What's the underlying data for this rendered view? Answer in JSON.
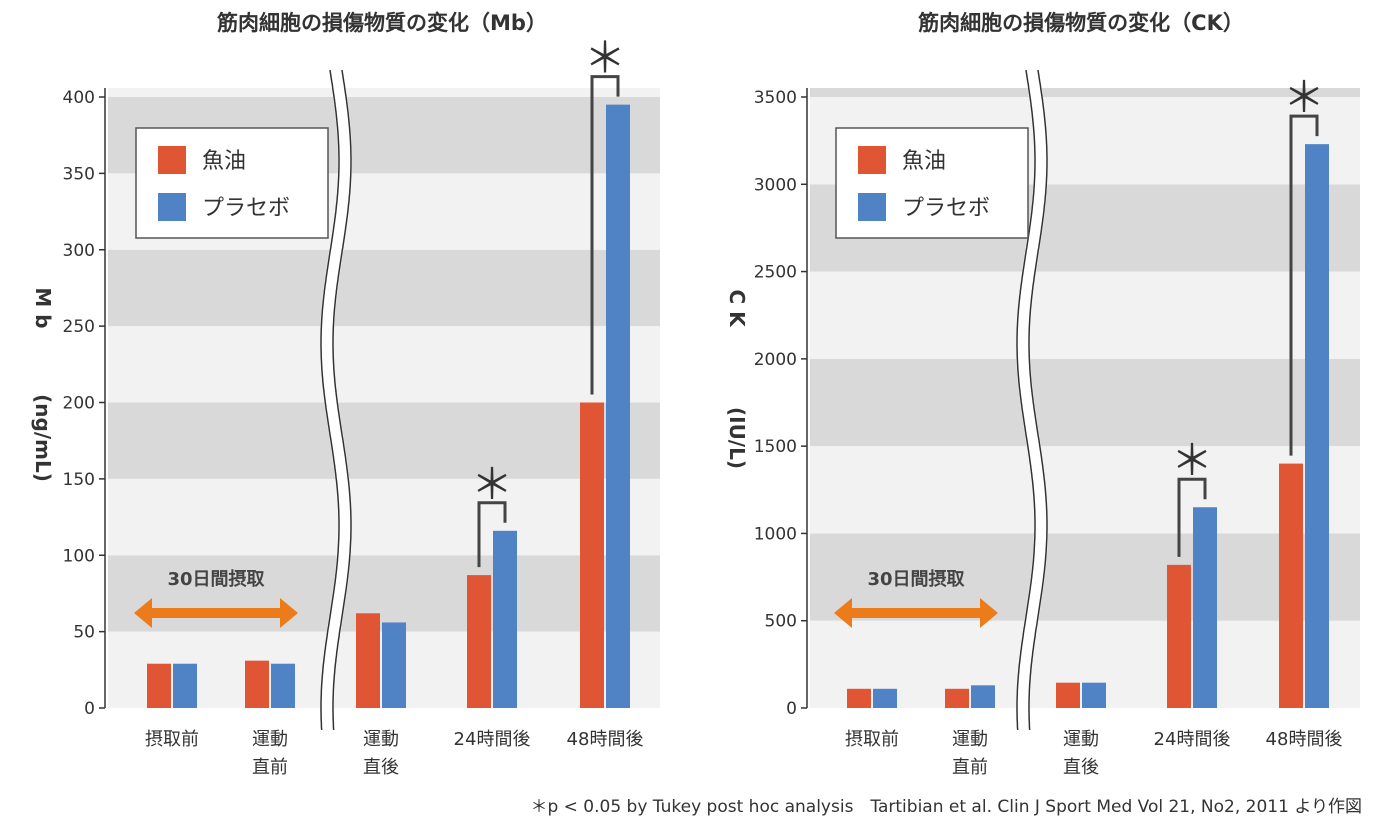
{
  "colors": {
    "fish_oil": "#e05533",
    "placebo": "#5083c6",
    "band_dark": "#d9d9d9",
    "band_light": "#f2f2f2",
    "arrow": "#ec7b1a",
    "bracket": "#444444"
  },
  "footnote": "＊p < 0.05  by Tukey post hoc analysis　Tartibian et al. Clin J Sport Med Vol 21, No2, 2011 より作図",
  "chart_data": [
    {
      "type": "bar",
      "title": "筋肉細胞の損傷物質の変化（Mb）",
      "ylabel_line1": "M b",
      "ylabel_line2": "(ng/mL)",
      "ylim": [
        0,
        400
      ],
      "yticks": [
        "0",
        "50",
        "100",
        "150",
        "200",
        "250",
        "300",
        "350",
        "400"
      ],
      "categories": [
        {
          "line1": "摂取前",
          "line2": ""
        },
        {
          "line1": "運動",
          "line2": "直前"
        },
        {
          "line1": "運動",
          "line2": "直後"
        },
        {
          "line1": "24時間後",
          "line2": ""
        },
        {
          "line1": "48時間後",
          "line2": ""
        }
      ],
      "series": [
        {
          "name": "魚油",
          "values": [
            29,
            31,
            62,
            87,
            200
          ]
        },
        {
          "name": "プラセボ",
          "values": [
            29,
            29,
            56,
            116,
            395
          ]
        }
      ],
      "significance": [
        {
          "category": 3,
          "label": "＊"
        },
        {
          "category": 4,
          "label": "＊"
        }
      ],
      "arrow_label": "30日間摂取",
      "legend": "top-left",
      "grid": "alternating horizontal bands"
    },
    {
      "type": "bar",
      "title": "筋肉細胞の損傷物質の変化（CK）",
      "ylabel_line1": "C K",
      "ylabel_line2": "(IU/L)",
      "ylim": [
        0,
        3500
      ],
      "yticks": [
        "0",
        "500",
        "1000",
        "1500",
        "2000",
        "2500",
        "3000",
        "3500"
      ],
      "categories": [
        {
          "line1": "摂取前",
          "line2": ""
        },
        {
          "line1": "運動",
          "line2": "直前"
        },
        {
          "line1": "運動",
          "line2": "直後"
        },
        {
          "line1": "24時間後",
          "line2": ""
        },
        {
          "line1": "48時間後",
          "line2": ""
        }
      ],
      "series": [
        {
          "name": "魚油",
          "values": [
            110,
            110,
            145,
            820,
            1400
          ]
        },
        {
          "name": "プラセボ",
          "values": [
            110,
            130,
            145,
            1150,
            3230
          ]
        }
      ],
      "significance": [
        {
          "category": 3,
          "label": "＊"
        },
        {
          "category": 4,
          "label": "＊"
        }
      ],
      "arrow_label": "30日間摂取",
      "legend": "top-left",
      "grid": "alternating horizontal bands"
    }
  ]
}
